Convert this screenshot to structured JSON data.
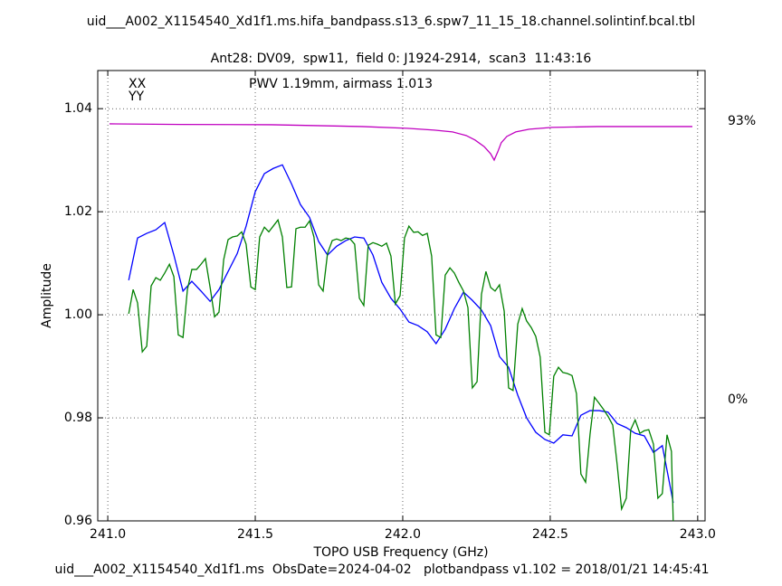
{
  "chart_data": {
    "type": "line",
    "title": "uid___A002_X1154540_Xd1f1.ms.hifa_bandpass.s13_6.spw7_11_15_18.channel.solintinf.bcal.tbl",
    "subtitle": "Ant28: DV09,  spw11,  field 0: J1924-2914,  scan3  11:43:16",
    "annotation": "PWV 1.19mm, airmass 1.013",
    "annotation_color": "#c000c0",
    "x_label": "TOPO USB Frequency (GHz)",
    "y_label": "Amplitude",
    "footer": "uid___A002_X1154540_Xd1f1.ms  ObsDate=2024-04-02   plotbandpass v1.102 = 2018/01/21 14:45:41",
    "grid": true,
    "xlim": [
      240.966,
      243.025
    ],
    "xticks": [
      {
        "value": 241,
        "label": "241.0"
      },
      241.5,
      {
        "value": 242,
        "label": "242.0"
      },
      242.5,
      {
        "value": 243,
        "label": "243.0"
      }
    ],
    "ylim": [
      0.96,
      1.0474
    ],
    "yticks": [
      0.96,
      0.98,
      {
        "value": 1,
        "label": "1.00"
      },
      1.02,
      1.04
    ],
    "y2lim": [
      -40.5,
      109.9
    ],
    "y2ticks": [
      {
        "value": 93,
        "label": "93%"
      },
      {
        "value": 0,
        "label": "0%"
      }
    ],
    "y2color": "#c000c0",
    "series": [
      {
        "name": "XX",
        "color": "#0000ff",
        "x": [
          241.071,
          241.101,
          241.132,
          241.163,
          241.193,
          241.224,
          241.255,
          241.285,
          241.316,
          241.347,
          241.377,
          241.408,
          241.439,
          241.469,
          241.5,
          241.531,
          241.561,
          241.592,
          241.623,
          241.653,
          241.684,
          241.715,
          241.745,
          241.776,
          241.807,
          241.837,
          241.868,
          241.899,
          241.929,
          241.96,
          241.991,
          242.021,
          242.052,
          242.083,
          242.113,
          242.144,
          242.175,
          242.206,
          242.236,
          242.267,
          242.298,
          242.328,
          242.359,
          242.39,
          242.42,
          242.451,
          242.482,
          242.512,
          242.543,
          242.574,
          242.604,
          242.635,
          242.666,
          242.696,
          242.727,
          242.758,
          242.788,
          242.819,
          242.85,
          242.88,
          242.911,
          242.917
        ],
        "values": [
          1.0067,
          1.0149,
          1.0158,
          1.0165,
          1.0179,
          1.0116,
          1.0046,
          1.0065,
          1.0046,
          1.0026,
          1.0049,
          1.0084,
          1.0119,
          1.0172,
          1.0239,
          1.0274,
          1.0284,
          1.0291,
          1.0254,
          1.0214,
          1.0189,
          1.0142,
          1.0116,
          1.0133,
          1.0144,
          1.0151,
          1.0149,
          1.0116,
          1.0063,
          1.0032,
          1.0011,
          0.9986,
          0.9979,
          0.9967,
          0.9944,
          0.9972,
          1.0012,
          1.0044,
          1.0028,
          1.0009,
          0.9979,
          0.9919,
          0.9898,
          0.9844,
          0.98,
          0.9772,
          0.9758,
          0.9751,
          0.9767,
          0.9765,
          0.9805,
          0.9814,
          0.9814,
          0.9811,
          0.9789,
          0.9781,
          0.977,
          0.9765,
          0.9733,
          0.9746,
          0.9654,
          0.9635
        ]
      },
      {
        "name": "YY",
        "color": "#008000",
        "x": [
          241.071,
          241.086,
          241.101,
          241.117,
          241.132,
          241.147,
          241.163,
          241.178,
          241.193,
          241.209,
          241.224,
          241.239,
          241.255,
          241.27,
          241.285,
          241.301,
          241.316,
          241.331,
          241.347,
          241.362,
          241.377,
          241.393,
          241.408,
          241.423,
          241.439,
          241.454,
          241.469,
          241.485,
          241.5,
          241.515,
          241.531,
          241.546,
          241.561,
          241.577,
          241.592,
          241.607,
          241.623,
          241.638,
          241.653,
          241.669,
          241.684,
          241.699,
          241.715,
          241.73,
          241.745,
          241.761,
          241.776,
          241.791,
          241.807,
          241.822,
          241.837,
          241.853,
          241.868,
          241.883,
          241.899,
          241.914,
          241.929,
          241.945,
          241.96,
          241.975,
          241.991,
          242.006,
          242.021,
          242.037,
          242.052,
          242.067,
          242.083,
          242.098,
          242.113,
          242.129,
          242.144,
          242.16,
          242.175,
          242.19,
          242.206,
          242.221,
          242.236,
          242.252,
          242.267,
          242.282,
          242.298,
          242.313,
          242.328,
          242.344,
          242.359,
          242.374,
          242.39,
          242.405,
          242.42,
          242.436,
          242.451,
          242.466,
          242.482,
          242.497,
          242.512,
          242.528,
          242.543,
          242.558,
          242.574,
          242.589,
          242.604,
          242.62,
          242.635,
          242.65,
          242.666,
          242.681,
          242.696,
          242.712,
          242.727,
          242.742,
          242.758,
          242.773,
          242.788,
          242.804,
          242.819,
          242.834,
          242.85,
          242.865,
          242.88,
          242.896,
          242.911,
          242.917
        ],
        "values": [
          1.0002,
          1.0049,
          1.0023,
          0.9928,
          0.9939,
          1.0056,
          1.0072,
          1.0067,
          1.0081,
          1.0098,
          1.0074,
          0.9961,
          0.9956,
          1.0049,
          1.0088,
          1.0088,
          1.0098,
          1.0109,
          1.0053,
          0.9996,
          1.0005,
          1.0107,
          1.0146,
          1.0151,
          1.0153,
          1.0161,
          1.0137,
          1.0054,
          1.0049,
          1.0151,
          1.017,
          1.0161,
          1.0172,
          1.0184,
          1.0151,
          1.0053,
          1.0054,
          1.0167,
          1.017,
          1.017,
          1.0182,
          1.0151,
          1.0058,
          1.0046,
          1.0119,
          1.0144,
          1.0147,
          1.0144,
          1.0149,
          1.0147,
          1.0137,
          1.0032,
          1.0018,
          1.0135,
          1.014,
          1.0137,
          1.0133,
          1.0139,
          1.0114,
          1.0021,
          1.0037,
          1.0149,
          1.0172,
          1.016,
          1.0161,
          1.0154,
          1.0158,
          1.0114,
          0.9961,
          0.9956,
          1.0077,
          1.0091,
          1.0081,
          1.0063,
          1.0046,
          1.0014,
          0.9858,
          0.987,
          1.004,
          1.0084,
          1.0053,
          1.0046,
          1.0058,
          1.0007,
          0.9858,
          0.9853,
          0.9982,
          1.0012,
          0.9988,
          0.9975,
          0.9958,
          0.9918,
          0.9772,
          0.9767,
          0.9881,
          0.9898,
          0.9888,
          0.9886,
          0.9882,
          0.9847,
          0.9691,
          0.9675,
          0.9768,
          0.984,
          0.9828,
          0.9816,
          0.9803,
          0.9786,
          0.9709,
          0.9623,
          0.9644,
          0.9777,
          0.9796,
          0.977,
          0.9775,
          0.9777,
          0.9749,
          0.9644,
          0.9653,
          0.9767,
          0.9735,
          0.96
        ]
      },
      {
        "color": "#c000c0",
        "axis": "y2",
        "x": [
          241.006,
          241.248,
          241.555,
          241.862,
          242.015,
          242.107,
          242.169,
          242.215,
          242.245,
          242.276,
          242.298,
          242.31,
          242.322,
          242.334,
          242.353,
          242.383,
          242.429,
          242.506,
          242.66,
          242.982
        ],
        "values": [
          92.1,
          91.9,
          91.8,
          91.2,
          90.6,
          90.0,
          89.4,
          88.2,
          86.7,
          84.5,
          82.1,
          80.0,
          82.7,
          85.8,
          87.9,
          89.4,
          90.3,
          90.9,
          91.2,
          91.2
        ]
      }
    ]
  }
}
